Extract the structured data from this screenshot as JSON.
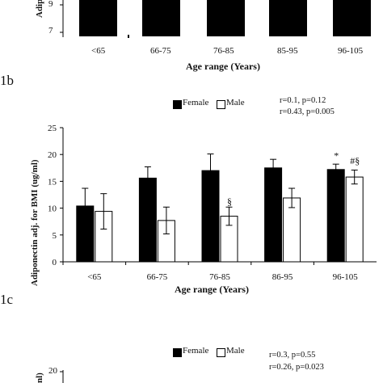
{
  "panels": {
    "top": {
      "ylabel": "Adiponec",
      "yticks": [
        "9",
        "7"
      ],
      "categories": [
        "<65",
        "66-75",
        "76-85",
        "85-95",
        "96-105"
      ],
      "xlabel": "Age range (Years)",
      "panel_label": "1b"
    },
    "middle": {
      "legend": {
        "female": "Female",
        "male": "Male"
      },
      "stats": [
        "r=0.1, p=0.12",
        "r=0.43, p=0.005"
      ],
      "annotations": [
        "§",
        "*",
        "#§"
      ],
      "panel_label": "1c"
    },
    "bottom": {
      "legend": {
        "female": "Female",
        "male": "Male"
      },
      "stats": [
        "r=0.3, p=0.55",
        "r=0.26, p=0.023"
      ],
      "ylabel": "nl)",
      "ytick": "20"
    }
  },
  "chart_data": [
    {
      "type": "bar",
      "title": "",
      "ylabel": "Adiponec",
      "xlabel": "Age range (Years)",
      "categories": [
        "<65",
        "66-75",
        "76-85",
        "85-95",
        "96-105"
      ],
      "series": [
        {
          "name": "Female",
          "values": [
            null,
            null,
            null,
            null,
            null
          ]
        },
        {
          "name": "Male",
          "values": [
            null,
            null,
            null,
            null,
            null
          ]
        }
      ],
      "colors": {
        "Female": "#000000",
        "Male": "#ffffff"
      }
    },
    {
      "type": "bar",
      "title": "",
      "xlabel": "Age range (Years)",
      "ylabel": "Adiponectin adj. for BMI (ug/ml)",
      "categories": [
        "<65",
        "66-75",
        "76-85",
        "86-95",
        "96-105"
      ],
      "yticks": [
        0,
        5,
        10,
        15,
        20,
        25
      ],
      "ylim": [
        0,
        25
      ],
      "series": [
        {
          "name": "Female",
          "values": [
            10.4,
            15.6,
            17.0,
            17.5,
            17.2
          ],
          "errors": [
            3.3,
            2.1,
            3.1,
            1.6,
            1.0
          ]
        },
        {
          "name": "Male",
          "values": [
            9.4,
            7.7,
            8.5,
            11.9,
            15.8
          ],
          "errors": [
            3.3,
            2.5,
            1.7,
            1.8,
            1.3
          ]
        }
      ],
      "legend": "top-center",
      "colors": {
        "Female": "#000000",
        "Male": "#ffffff"
      }
    }
  ]
}
